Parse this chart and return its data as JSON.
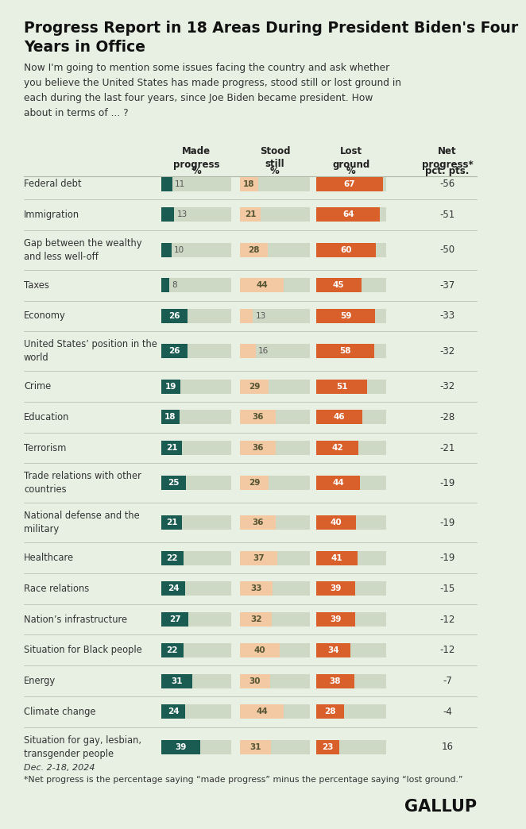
{
  "title": "Progress Report in 18 Areas During President Biden's Four\nYears in Office",
  "subtitle": "Now I'm going to mention some issues facing the country and ask whether\nyou believe the United States has made progress, stood still or lost ground in\neach during the last four years, since Joe Biden became president. How\nabout in terms of ... ?",
  "background_color": "#e8f0e4",
  "col_headers": [
    "Made\nprogress",
    "Stood\nstill",
    "Lost\nground",
    "Net\nprogress*"
  ],
  "col_subheaders": [
    "%",
    "%",
    "%",
    "pct. pts."
  ],
  "rows": [
    {
      "label": "Federal debt",
      "progress": 11,
      "stood": 18,
      "lost": 67,
      "net": -56
    },
    {
      "label": "Immigration",
      "progress": 13,
      "stood": 21,
      "lost": 64,
      "net": -51
    },
    {
      "label": "Gap between the wealthy\nand less well-off",
      "progress": 10,
      "stood": 28,
      "lost": 60,
      "net": -50
    },
    {
      "label": "Taxes",
      "progress": 8,
      "stood": 44,
      "lost": 45,
      "net": -37
    },
    {
      "label": "Economy",
      "progress": 26,
      "stood": 13,
      "lost": 59,
      "net": -33
    },
    {
      "label": "United States’ position in the\nworld",
      "progress": 26,
      "stood": 16,
      "lost": 58,
      "net": -32
    },
    {
      "label": "Crime",
      "progress": 19,
      "stood": 29,
      "lost": 51,
      "net": -32
    },
    {
      "label": "Education",
      "progress": 18,
      "stood": 36,
      "lost": 46,
      "net": -28
    },
    {
      "label": "Terrorism",
      "progress": 21,
      "stood": 36,
      "lost": 42,
      "net": -21
    },
    {
      "label": "Trade relations with other\ncountries",
      "progress": 25,
      "stood": 29,
      "lost": 44,
      "net": -19
    },
    {
      "label": "National defense and the\nmilitary",
      "progress": 21,
      "stood": 36,
      "lost": 40,
      "net": -19
    },
    {
      "label": "Healthcare",
      "progress": 22,
      "stood": 37,
      "lost": 41,
      "net": -19
    },
    {
      "label": "Race relations",
      "progress": 24,
      "stood": 33,
      "lost": 39,
      "net": -15
    },
    {
      "label": "Nation’s infrastructure",
      "progress": 27,
      "stood": 32,
      "lost": 39,
      "net": -12
    },
    {
      "label": "Situation for Black people",
      "progress": 22,
      "stood": 40,
      "lost": 34,
      "net": -12
    },
    {
      "label": "Energy",
      "progress": 31,
      "stood": 30,
      "lost": 38,
      "net": -7
    },
    {
      "label": "Climate change",
      "progress": 24,
      "stood": 44,
      "lost": 28,
      "net": -4
    },
    {
      "label": "Situation for gay, lesbian,\ntransgender people",
      "progress": 39,
      "stood": 31,
      "lost": 23,
      "net": 16
    }
  ],
  "color_progress": "#1a5c52",
  "color_stood": "#f2c9a3",
  "color_lost": "#d95f2b",
  "color_bg_bar": "#cdd8c5",
  "footnote_date": "Dec. 2-18, 2024",
  "footnote_net": "*Net progress is the percentage saying “made progress” minus the percentage saying “lost ground.”",
  "gallup_text": "GALLUP",
  "text_color": "#333333"
}
